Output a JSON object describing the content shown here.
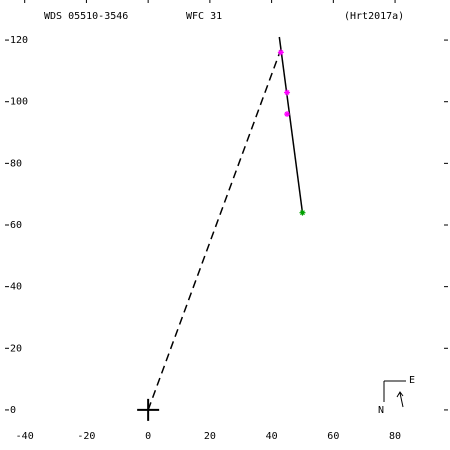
{
  "chart_data": {
    "type": "scatter",
    "title": "WDS 05510-3546",
    "subtitle": "WFC  31",
    "reference": "(Hrt2017a)",
    "xlim": [
      -48,
      97.8
    ],
    "ylim": [
      -13,
      133
    ],
    "xticks": [
      -40,
      -20,
      0,
      20,
      40,
      60,
      80
    ],
    "yticks": [
      0,
      20,
      40,
      60,
      80,
      100,
      120
    ],
    "orbit": {
      "color": "#000000",
      "x": [
        42.5,
        50
      ],
      "y": [
        121,
        64
      ]
    },
    "node_line": {
      "color": "#000000",
      "x": [
        0,
        43
      ],
      "y": [
        0,
        117
      ]
    },
    "series": [
      {
        "color": "#ff00ff",
        "x": [
          45,
          45,
          43
        ],
        "y": [
          103,
          96,
          116
        ]
      },
      {
        "color": "#00a000",
        "x": [
          50
        ],
        "y": [
          64
        ]
      }
    ],
    "compass": [
      "N",
      "E"
    ]
  }
}
